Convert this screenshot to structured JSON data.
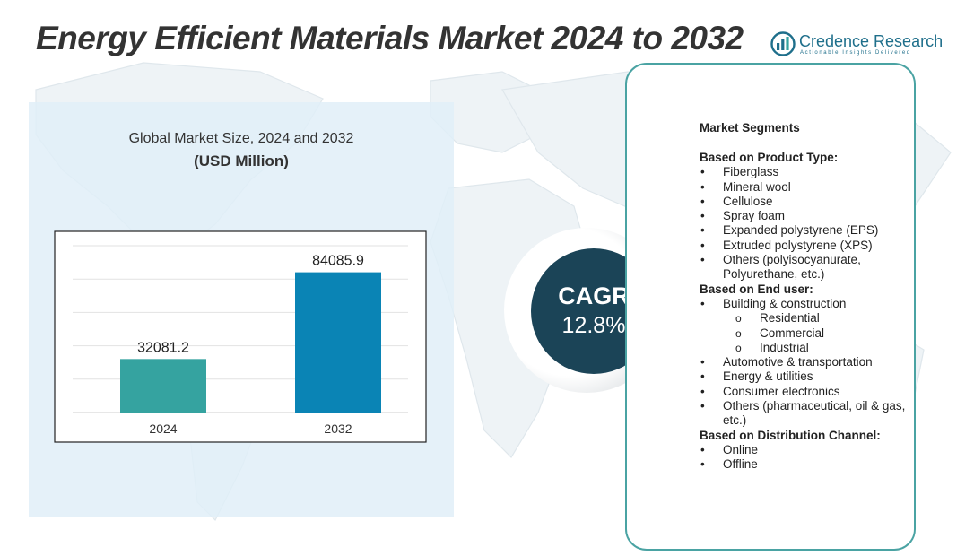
{
  "header": {
    "title": "Energy Efficient Materials Market 2024 to 2032",
    "brand_name": "Credence Research",
    "brand_tagline": "Actionable Insights Delivered"
  },
  "colors": {
    "bar_2024": "#35a3a0",
    "bar_2032": "#0a84b5",
    "cagr_circle": "#1b4457",
    "segment_border": "#4aa3a3",
    "brand": "#1f6f8b"
  },
  "chart_data": {
    "type": "bar",
    "title": "Global Market Size,  2024 and 2032",
    "subtitle": "(USD Million)",
    "categories": [
      "2024",
      "2032"
    ],
    "values": [
      32081.2,
      84085.9
    ],
    "value_labels": [
      "32081.2",
      "84085.9"
    ],
    "ylim": [
      0,
      100000
    ],
    "grid": true,
    "legend": "none"
  },
  "cagr": {
    "label": "CAGR",
    "value": "12.8%"
  },
  "segments": {
    "heading": "Market Segments",
    "groups": [
      {
        "title": "Based on Product Type:",
        "items": [
          {
            "text": "Fiberglass"
          },
          {
            "text": "Mineral wool"
          },
          {
            "text": "Cellulose"
          },
          {
            "text": "Spray foam"
          },
          {
            "text": "Expanded polystyrene (EPS)"
          },
          {
            "text": "Extruded polystyrene (XPS)"
          },
          {
            "text": "Others (polyisocyanurate, Polyurethane, etc.)"
          }
        ]
      },
      {
        "title": "Based on End user:",
        "items": [
          {
            "text": "Building & construction",
            "sub": [
              "Residential",
              "Commercial",
              "Industrial"
            ]
          },
          {
            "text": "Automotive & transportation"
          },
          {
            "text": "Energy & utilities"
          },
          {
            "text": "Consumer electronics"
          },
          {
            "text": "Others (pharmaceutical, oil & gas, etc.)"
          }
        ]
      },
      {
        "title": "Based on  Distribution Channel:",
        "items": [
          {
            "text": "Online"
          },
          {
            "text": "Offline"
          }
        ]
      }
    ]
  }
}
